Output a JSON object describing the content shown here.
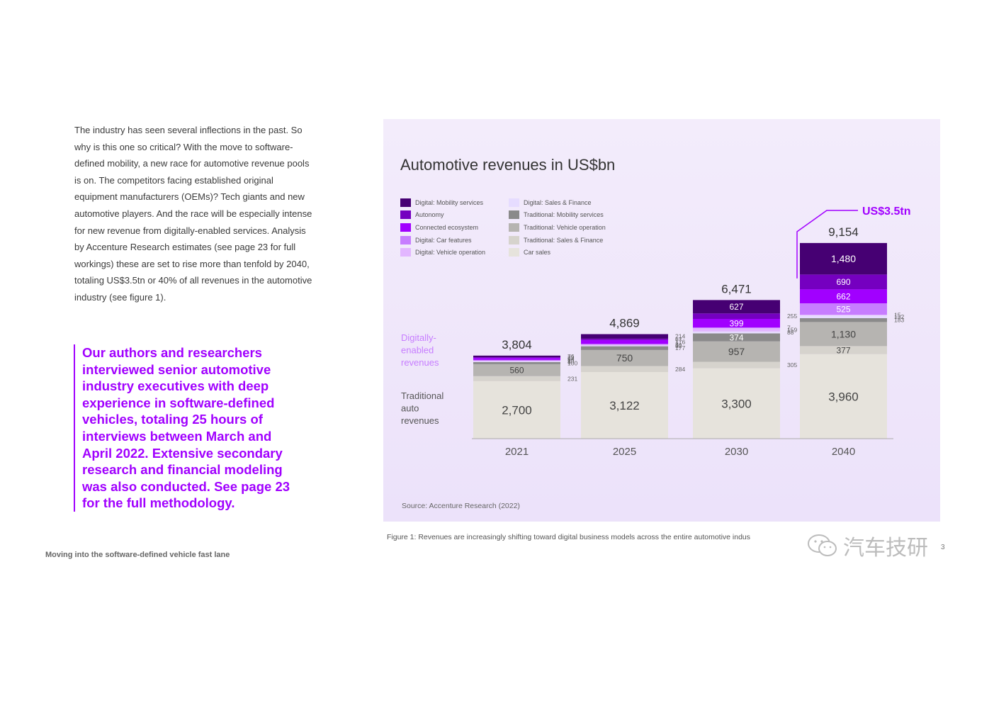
{
  "body_text": "The industry has seen several inflections in the past. So why is this one so critical? With the move to software-defined mobility, a new race for automotive revenue pools is on. The competitors facing established original equipment manufacturers (OEMs)? Tech giants and new automotive players. And the race will be especially intense for new revenue from digitally-enabled services. Analysis by Accenture Research estimates (see page 23 for full workings) these are set to rise more than tenfold by 2040, totaling US$3.5tn or 40% of all revenues in the automotive industry (see figure 1).",
  "quote": "Our authors and researchers interviewed senior automotive industry executives with deep experience in software-defined vehicles, totaling 25 hours of interviews between March and April 2022. Extensive secondary research and financial modeling was also conducted. See page 23 for the full methodology.",
  "footer": "Moving into the software-defined vehicle fast lane",
  "source": "Source: Accenture Research (2022)",
  "caption": "Figure 1: Revenues are increasingly shifting toward digital business models across the entire automotive indus",
  "watermark": "汽车技研",
  "page_number": "3",
  "colors": {
    "accent": "#a100ff",
    "panel_bg": "#efe6fb"
  },
  "chart_data": {
    "type": "bar",
    "title": "Automotive revenues in US$bn",
    "categories": [
      "2021",
      "2025",
      "2030",
      "2040"
    ],
    "totals": [
      "3,804",
      "4,869",
      "6,471",
      "9,154"
    ],
    "group_labels": {
      "digital": "Digitally-enabled revenues",
      "traditional": "Traditional auto revenues"
    },
    "callout": "US$3.5tn",
    "series": [
      {
        "name": "Car sales",
        "color": "#e6e3dc",
        "values": [
          2700,
          3122,
          3300,
          3960
        ],
        "labels": [
          "2,700",
          "3,122",
          "3,300",
          "3,960"
        ]
      },
      {
        "name": "Traditional: Sales & Finance",
        "color": "#d6d3cd",
        "values": [
          231,
          284,
          305,
          377
        ],
        "labels": [
          "231",
          "284",
          "305",
          "377"
        ]
      },
      {
        "name": "Traditional: Vehicle operation",
        "color": "#b6b4b1",
        "values": [
          560,
          750,
          957,
          1130
        ],
        "labels": [
          "560",
          "750",
          "957",
          "1,130"
        ]
      },
      {
        "name": "Traditional: Mobility services",
        "color": "#8a8a8a",
        "values": [
          100,
          177,
          374,
          183
        ],
        "labels": [
          "100",
          "177",
          "374",
          "183"
        ]
      },
      {
        "name": "Digital: Sales & Finance",
        "color": "#e6dcff",
        "values": [
          8,
          32,
          88,
          132
        ],
        "labels": [
          "8",
          "32",
          "88",
          "132"
        ]
      },
      {
        "name": "Digital: Vehicle operation",
        "color": "#e2b6ff",
        "values": [
          10,
          44,
          159,
          15
        ],
        "labels": [
          "10",
          "44",
          "159",
          "15"
        ]
      },
      {
        "name": "Digital: Car features",
        "color": "#c77dff",
        "values": [
          1,
          3,
          7,
          525
        ],
        "labels": [
          "1",
          "3",
          "7",
          "525"
        ]
      },
      {
        "name": "Connected ecosystem",
        "color": "#a100ff",
        "values": [
          94,
          176,
          399,
          662
        ],
        "labels": [
          "94",
          "176",
          "399",
          "662"
        ]
      },
      {
        "name": "Autonomy",
        "color": "#7500c0",
        "values": [
          23,
          67,
          255,
          690
        ],
        "labels": [
          "23",
          "67",
          "255",
          "690"
        ]
      },
      {
        "name": "Digital: Mobility services",
        "color": "#460073",
        "values": [
          76,
          214,
          627,
          1480
        ],
        "labels": [
          "76",
          "214",
          "627",
          "1,480"
        ]
      }
    ],
    "legend_left": [
      {
        "name": "Digital: Mobility services",
        "color": "#460073"
      },
      {
        "name": "Autonomy",
        "color": "#7500c0"
      },
      {
        "name": "Connected ecosystem",
        "color": "#a100ff"
      },
      {
        "name": "Digital: Car features",
        "color": "#c77dff"
      },
      {
        "name": "Digital: Vehicle operation",
        "color": "#e2b6ff"
      }
    ],
    "legend_right": [
      {
        "name": "Digital: Sales & Finance",
        "color": "#e6dcff"
      },
      {
        "name": "Traditional: Mobility services",
        "color": "#8a8a8a"
      },
      {
        "name": "Traditional: Vehicle operation",
        "color": "#b6b4b1"
      },
      {
        "name": "Traditional: Sales & Finance",
        "color": "#d6d3cd"
      },
      {
        "name": "Car sales",
        "color": "#e6e3dc"
      }
    ]
  }
}
